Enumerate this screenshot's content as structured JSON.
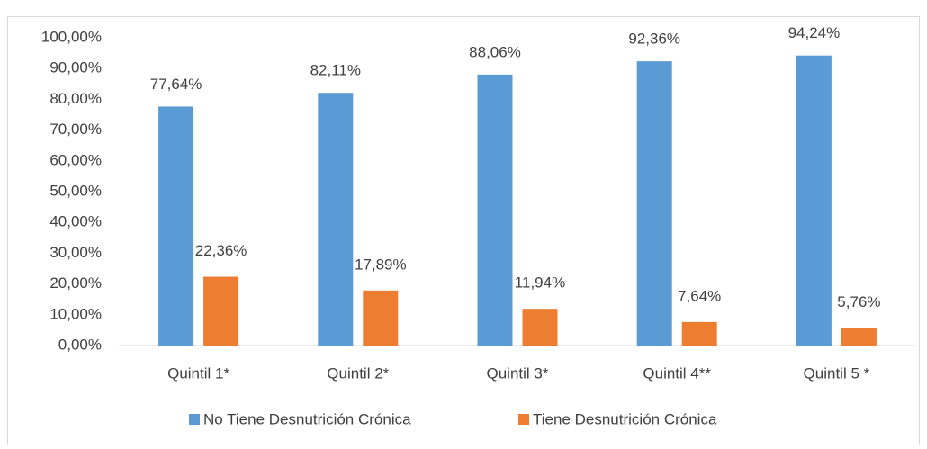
{
  "chart_data": {
    "type": "bar",
    "categories": [
      "Quintil 1*",
      "Quintil 2*",
      "Quintil 3*",
      "Quintil 4**",
      "Quintil 5 *"
    ],
    "series": [
      {
        "name": "No Tiene Desnutrición Crónica",
        "color": "#5b9bd5",
        "values": [
          77.64,
          82.11,
          88.06,
          92.36,
          94.24
        ],
        "value_labels": [
          "77,64%",
          "82,11%",
          "88,06%",
          "92,36%",
          "94,24%"
        ]
      },
      {
        "name": "Tiene Desnutrición Crónica",
        "color": "#ed7d31",
        "values": [
          22.36,
          17.89,
          11.94,
          7.64,
          5.76
        ],
        "value_labels": [
          "22,36%",
          "17,89%",
          "11,94%",
          "7,64%",
          "5,76%"
        ]
      }
    ],
    "ylim": [
      0,
      100
    ],
    "yticks": [
      {
        "value": 0,
        "label": "0,00%"
      },
      {
        "value": 10,
        "label": "10,00%"
      },
      {
        "value": 20,
        "label": "20,00%"
      },
      {
        "value": 30,
        "label": "30,00%"
      },
      {
        "value": 40,
        "label": "40,00%"
      },
      {
        "value": 50,
        "label": "50,00%"
      },
      {
        "value": 60,
        "label": "60,00%"
      },
      {
        "value": 70,
        "label": "70,00%"
      },
      {
        "value": 80,
        "label": "80,00%"
      },
      {
        "value": 90,
        "label": "90,00%"
      },
      {
        "value": 100,
        "label": "100,00%"
      }
    ],
    "grid": false,
    "legend": "bottom"
  }
}
